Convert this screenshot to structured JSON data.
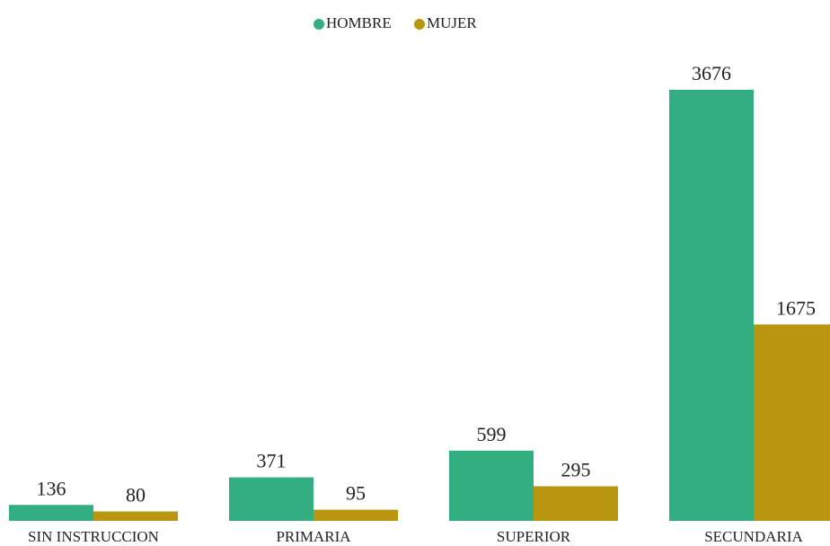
{
  "chart_data": {
    "type": "bar",
    "categories": [
      "SIN INSTRUCCION",
      "PRIMARIA",
      "SUPERIOR",
      "SECUNDARIA"
    ],
    "series": [
      {
        "name": "HOMBRE",
        "color": "#33ae80",
        "values": [
          136,
          371,
          599,
          3676
        ]
      },
      {
        "name": "MUJER",
        "color": "#b8960f",
        "values": [
          80,
          95,
          295,
          1675
        ]
      }
    ],
    "legend": "top"
  }
}
